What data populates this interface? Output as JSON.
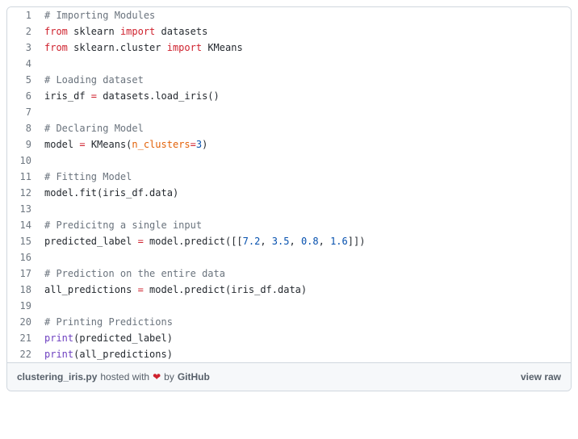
{
  "code": {
    "lines": [
      {
        "num": "1",
        "tokens": [
          {
            "cls": "tok-cm",
            "text": "# Importing Modules"
          }
        ]
      },
      {
        "num": "2",
        "tokens": [
          {
            "cls": "tok-kw",
            "text": "from"
          },
          {
            "cls": "tok-plain",
            "text": " sklearn "
          },
          {
            "cls": "tok-kw",
            "text": "import"
          },
          {
            "cls": "tok-plain",
            "text": " datasets"
          }
        ]
      },
      {
        "num": "3",
        "tokens": [
          {
            "cls": "tok-kw",
            "text": "from"
          },
          {
            "cls": "tok-plain",
            "text": " sklearn.cluster "
          },
          {
            "cls": "tok-kw",
            "text": "import"
          },
          {
            "cls": "tok-plain",
            "text": " KMeans"
          }
        ]
      },
      {
        "num": "4",
        "tokens": [
          {
            "cls": "tok-plain",
            "text": ""
          }
        ]
      },
      {
        "num": "5",
        "tokens": [
          {
            "cls": "tok-cm",
            "text": "# Loading dataset"
          }
        ]
      },
      {
        "num": "6",
        "tokens": [
          {
            "cls": "tok-plain",
            "text": "iris_df "
          },
          {
            "cls": "tok-op",
            "text": "="
          },
          {
            "cls": "tok-plain",
            "text": " datasets.load_iris()"
          }
        ]
      },
      {
        "num": "7",
        "tokens": [
          {
            "cls": "tok-plain",
            "text": ""
          }
        ]
      },
      {
        "num": "8",
        "tokens": [
          {
            "cls": "tok-cm",
            "text": "# Declaring Model"
          }
        ]
      },
      {
        "num": "9",
        "tokens": [
          {
            "cls": "tok-plain",
            "text": "model "
          },
          {
            "cls": "tok-op",
            "text": "="
          },
          {
            "cls": "tok-plain",
            "text": " KMeans("
          },
          {
            "cls": "tok-param",
            "text": "n_clusters"
          },
          {
            "cls": "tok-op",
            "text": "="
          },
          {
            "cls": "tok-num",
            "text": "3"
          },
          {
            "cls": "tok-plain",
            "text": ")"
          }
        ]
      },
      {
        "num": "10",
        "tokens": [
          {
            "cls": "tok-plain",
            "text": ""
          }
        ]
      },
      {
        "num": "11",
        "tokens": [
          {
            "cls": "tok-cm",
            "text": "# Fitting Model"
          }
        ]
      },
      {
        "num": "12",
        "tokens": [
          {
            "cls": "tok-plain",
            "text": "model.fit(iris_df.data)"
          }
        ]
      },
      {
        "num": "13",
        "tokens": [
          {
            "cls": "tok-plain",
            "text": ""
          }
        ]
      },
      {
        "num": "14",
        "tokens": [
          {
            "cls": "tok-cm",
            "text": "# Predicitng a single input"
          }
        ]
      },
      {
        "num": "15",
        "tokens": [
          {
            "cls": "tok-plain",
            "text": "predicted_label "
          },
          {
            "cls": "tok-op",
            "text": "="
          },
          {
            "cls": "tok-plain",
            "text": " model.predict([["
          },
          {
            "cls": "tok-num",
            "text": "7.2"
          },
          {
            "cls": "tok-plain",
            "text": ", "
          },
          {
            "cls": "tok-num",
            "text": "3.5"
          },
          {
            "cls": "tok-plain",
            "text": ", "
          },
          {
            "cls": "tok-num",
            "text": "0.8"
          },
          {
            "cls": "tok-plain",
            "text": ", "
          },
          {
            "cls": "tok-num",
            "text": "1.6"
          },
          {
            "cls": "tok-plain",
            "text": "]])"
          }
        ]
      },
      {
        "num": "16",
        "tokens": [
          {
            "cls": "tok-plain",
            "text": ""
          }
        ]
      },
      {
        "num": "17",
        "tokens": [
          {
            "cls": "tok-cm",
            "text": "# Prediction on the entire data"
          }
        ]
      },
      {
        "num": "18",
        "tokens": [
          {
            "cls": "tok-plain",
            "text": "all_predictions "
          },
          {
            "cls": "tok-op",
            "text": "="
          },
          {
            "cls": "tok-plain",
            "text": " model.predict(iris_df.data)"
          }
        ]
      },
      {
        "num": "19",
        "tokens": [
          {
            "cls": "tok-plain",
            "text": ""
          }
        ]
      },
      {
        "num": "20",
        "tokens": [
          {
            "cls": "tok-cm",
            "text": "# Printing Predictions"
          }
        ]
      },
      {
        "num": "21",
        "tokens": [
          {
            "cls": "tok-fn",
            "text": "print"
          },
          {
            "cls": "tok-plain",
            "text": "(predicted_label)"
          }
        ]
      },
      {
        "num": "22",
        "tokens": [
          {
            "cls": "tok-fn",
            "text": "print"
          },
          {
            "cls": "tok-plain",
            "text": "(all_predictions)"
          }
        ]
      }
    ]
  },
  "meta": {
    "filename": "clustering_iris.py",
    "hosted_with": " hosted with ",
    "heart": "❤",
    "by": " by ",
    "host": "GitHub",
    "view_raw": "view raw"
  },
  "colors": {
    "border": "#d0d7de",
    "meta_bg": "#f6f8fa",
    "line_num": "#6e7781",
    "text": "#24292f",
    "keyword": "#cf222e",
    "func": "#6f42c1",
    "comment": "#6a737d",
    "number": "#0550ae",
    "param": "#e36209",
    "heart": "#cf222e"
  }
}
